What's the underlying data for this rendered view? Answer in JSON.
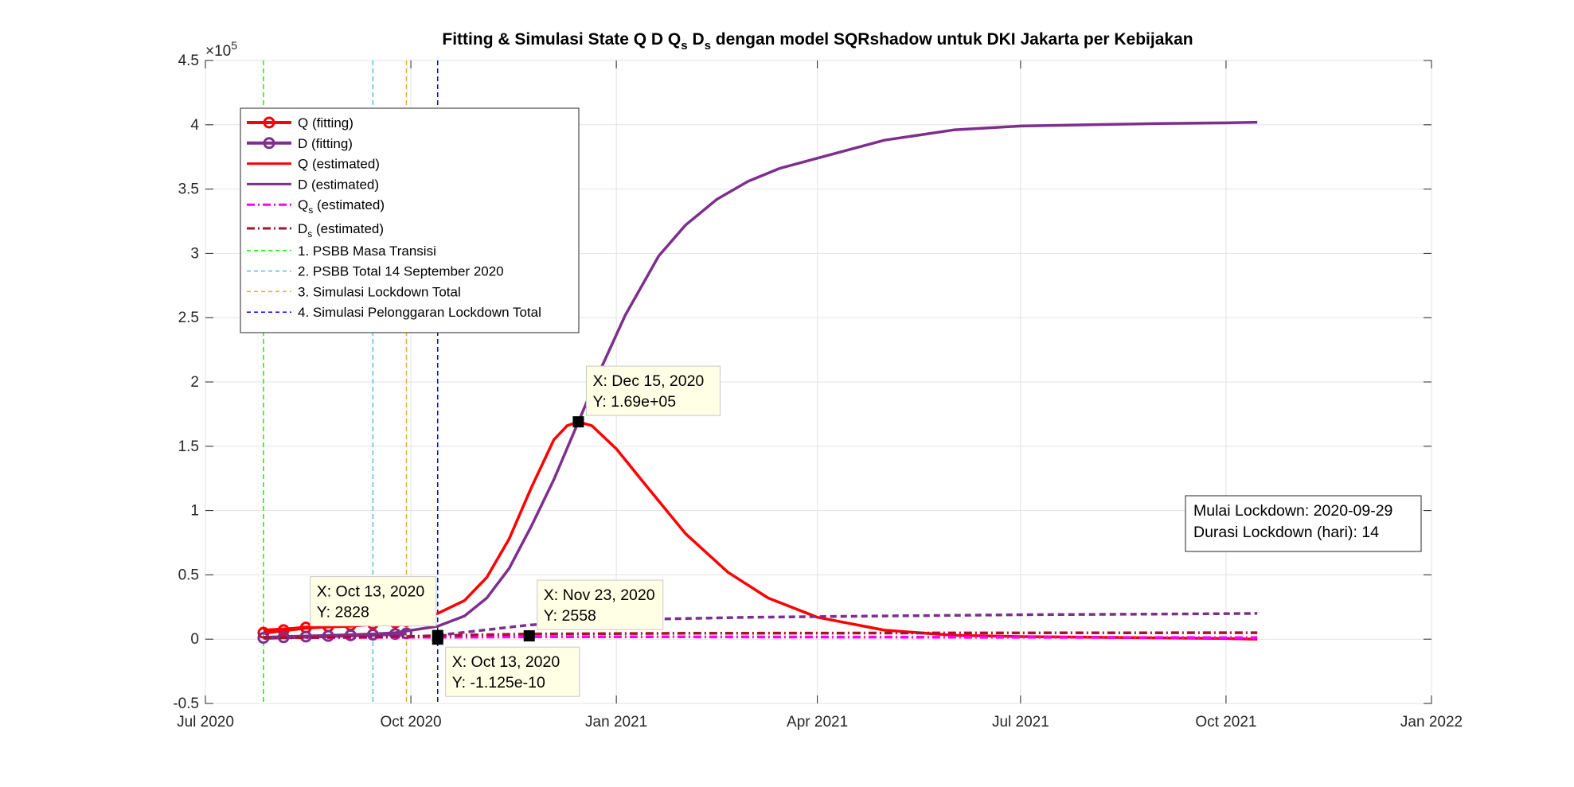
{
  "chart_data": {
    "type": "line",
    "title_parts": {
      "pre": "Fitting & Simulasi State  Q D Q",
      "sub1": "s",
      "mid": " D",
      "sub2": "s",
      "post": " dengan model SQRshadow untuk DKI Jakarta per Kebijakan"
    },
    "y_exponent_label": "×10",
    "y_exponent_power": "5",
    "ylim": [
      -0.5,
      4.5
    ],
    "y_ticks": [
      {
        "value": -0.5,
        "label": "-0.5"
      },
      {
        "value": 0,
        "label": "0"
      },
      {
        "value": 0.5,
        "label": "0.5"
      },
      {
        "value": 1,
        "label": "1"
      },
      {
        "value": 1.5,
        "label": "1.5"
      },
      {
        "value": 2,
        "label": "2"
      },
      {
        "value": 2.5,
        "label": "2.5"
      },
      {
        "value": 3,
        "label": "3"
      },
      {
        "value": 3.5,
        "label": "3.5"
      },
      {
        "value": 4,
        "label": "4"
      },
      {
        "value": 4.5,
        "label": "4.5"
      }
    ],
    "xlim": [
      "2020-07-01",
      "2022-01-01"
    ],
    "x_ticks": [
      {
        "date": "2020-07-01",
        "label": "Jul 2020"
      },
      {
        "date": "2020-10-01",
        "label": "Oct 2020"
      },
      {
        "date": "2021-01-01",
        "label": "Jan 2021"
      },
      {
        "date": "2021-04-01",
        "label": "Apr 2021"
      },
      {
        "date": "2021-07-01",
        "label": "Jul 2021"
      },
      {
        "date": "2021-10-01",
        "label": "Oct 2021"
      },
      {
        "date": "2022-01-01",
        "label": "Jan 2022"
      }
    ],
    "grid": true,
    "legend_position": "top-left",
    "series": [
      {
        "name": "Q (fitting)",
        "color": "#ff0000",
        "style": "circle-line",
        "x": [
          "2020-07-27",
          "2020-08-05",
          "2020-08-15",
          "2020-08-25",
          "2020-09-04",
          "2020-09-14",
          "2020-09-24",
          "2020-09-29"
        ],
        "y": [
          0.05,
          0.07,
          0.09,
          0.1,
          0.11,
          0.12,
          0.13,
          0.14
        ]
      },
      {
        "name": "D (fitting)",
        "color": "#7e2f8e",
        "style": "circle-line",
        "x": [
          "2020-07-27",
          "2020-08-05",
          "2020-08-15",
          "2020-08-25",
          "2020-09-04",
          "2020-09-14",
          "2020-09-24",
          "2020-09-29"
        ],
        "y": [
          0.01,
          0.015,
          0.02,
          0.025,
          0.03,
          0.035,
          0.04,
          0.045
        ]
      },
      {
        "name": "Q (estimated)",
        "color": "#ff0000",
        "style": "solid",
        "x": [
          "2020-07-27",
          "2020-08-15",
          "2020-09-04",
          "2020-09-24",
          "2020-10-13",
          "2020-10-25",
          "2020-11-04",
          "2020-11-14",
          "2020-11-24",
          "2020-12-04",
          "2020-12-10",
          "2020-12-15",
          "2020-12-21",
          "2021-01-01",
          "2021-01-15",
          "2021-02-01",
          "2021-02-20",
          "2021-03-10",
          "2021-04-01",
          "2021-05-01",
          "2021-06-01",
          "2021-07-01",
          "2021-08-01",
          "2021-09-01",
          "2021-10-01",
          "2021-10-15"
        ],
        "y": [
          0.07,
          0.09,
          0.1,
          0.13,
          0.2,
          0.3,
          0.48,
          0.78,
          1.18,
          1.55,
          1.66,
          1.69,
          1.66,
          1.48,
          1.18,
          0.82,
          0.52,
          0.32,
          0.17,
          0.07,
          0.03,
          0.02,
          0.015,
          0.01,
          0.005,
          0.0
        ]
      },
      {
        "name": "D (estimated)",
        "color": "#7e2f8e",
        "style": "solid",
        "x": [
          "2020-07-27",
          "2020-08-15",
          "2020-09-04",
          "2020-09-24",
          "2020-10-13",
          "2020-10-25",
          "2020-11-04",
          "2020-11-14",
          "2020-11-24",
          "2020-12-04",
          "2020-12-15",
          "2020-12-25",
          "2021-01-05",
          "2021-01-20",
          "2021-02-01",
          "2021-02-15",
          "2021-03-01",
          "2021-03-15",
          "2021-04-01",
          "2021-05-01",
          "2021-06-01",
          "2021-07-01",
          "2021-08-01",
          "2021-09-01",
          "2021-10-01",
          "2021-10-15"
        ],
        "y": [
          0.01,
          0.02,
          0.03,
          0.05,
          0.1,
          0.18,
          0.32,
          0.55,
          0.88,
          1.24,
          1.69,
          2.1,
          2.52,
          2.98,
          3.22,
          3.42,
          3.56,
          3.66,
          3.74,
          3.88,
          3.96,
          3.99,
          4.0,
          4.01,
          4.015,
          4.02
        ]
      },
      {
        "name": "Q_s (estimated)",
        "color": "#ff00ff",
        "style": "dash-dot",
        "x": [
          "2020-07-27",
          "2020-09-29",
          "2020-10-13",
          "2020-11-23",
          "2021-02-01",
          "2021-06-01",
          "2021-10-15"
        ],
        "y": [
          0.01,
          0.015,
          0.015,
          0.018,
          0.018,
          0.015,
          0.012
        ]
      },
      {
        "name": "D_s (estimated)",
        "color": "#a2142f",
        "style": "dash-dot",
        "x": [
          "2020-07-27",
          "2020-09-29",
          "2020-10-13",
          "2020-11-23",
          "2021-02-01",
          "2021-06-01",
          "2021-10-15"
        ],
        "y": [
          0.01,
          0.02,
          0.028,
          0.04,
          0.046,
          0.048,
          0.05
        ]
      },
      {
        "name": "D shadow (dashed)",
        "legend": false,
        "color": "#7e2f8e",
        "style": "dashed",
        "x": [
          "2020-10-13",
          "2020-11-23",
          "2021-01-01",
          "2021-03-01",
          "2021-05-01",
          "2021-07-01",
          "2021-09-01",
          "2021-10-15"
        ],
        "y": [
          0.03,
          0.11,
          0.15,
          0.17,
          0.18,
          0.19,
          0.195,
          0.2
        ]
      }
    ],
    "vlines": [
      {
        "name": "1. PSBB Masa Transisi",
        "date": "2020-07-27",
        "color": "#00ff00"
      },
      {
        "name": "2. PSBB Total 14 September 2020",
        "date": "2020-09-14",
        "color": "#4dbeee"
      },
      {
        "name": "3. Simulasi Lockdown Total",
        "date": "2020-09-29",
        "color": "#edb120"
      },
      {
        "name": "4. Simulasi Pelonggaran Lockdown Total",
        "date": "2020-10-13",
        "color": "#0000ff"
      }
    ],
    "legend_entries": [
      {
        "label": "Q (fitting)",
        "color": "#ff0000",
        "style": "circle-line"
      },
      {
        "label": "D (fitting)",
        "color": "#7e2f8e",
        "style": "circle-line"
      },
      {
        "label": "Q (estimated)",
        "color": "#ff0000",
        "style": "solid"
      },
      {
        "label": "D (estimated)",
        "color": "#7e2f8e",
        "style": "solid"
      },
      {
        "label": "Q",
        "sub": "s",
        "suffix": " (estimated)",
        "color": "#ff00ff",
        "style": "dash-dot"
      },
      {
        "label": "D",
        "sub": "s",
        "suffix": " (estimated)",
        "color": "#a2142f",
        "style": "dash-dot"
      },
      {
        "label": "1. PSBB Masa Transisi",
        "color": "#00ff00",
        "style": "dashed"
      },
      {
        "label": "2. PSBB Total 14 September 2020",
        "color": "#4dbeee",
        "style": "dashed"
      },
      {
        "label": "3. Simulasi Lockdown Total",
        "color": "#edb120",
        "style": "dashed"
      },
      {
        "label": "4. Simulasi Pelonggaran Lockdown Total",
        "color": "#0000ff",
        "style": "dashed"
      }
    ],
    "datatips": [
      {
        "marker": {
          "date": "2020-12-15",
          "y": 1.69
        },
        "line1": "X: Dec 15, 2020",
        "line2": "Y: 1.69e+05",
        "placement": "upper-right"
      },
      {
        "marker": {
          "date": "2020-10-13",
          "y": 0.02828
        },
        "line1": "X: Oct 13, 2020",
        "line2": "Y: 2828",
        "placement": "upper-left"
      },
      {
        "marker": {
          "date": "2020-11-23",
          "y": 0.02558
        },
        "line1": "X: Nov 23, 2020",
        "line2": "Y: 2558",
        "placement": "upper-right"
      },
      {
        "marker": {
          "date": "2020-10-13",
          "y": 0.0
        },
        "line1": "X: Oct 13, 2020",
        "line2": "Y: -1.125e-10",
        "placement": "lower-right"
      }
    ],
    "annotation": {
      "line1": "Mulai Lockdown: 2020-09-29",
      "line2": "Durasi Lockdown (hari): 14"
    }
  }
}
